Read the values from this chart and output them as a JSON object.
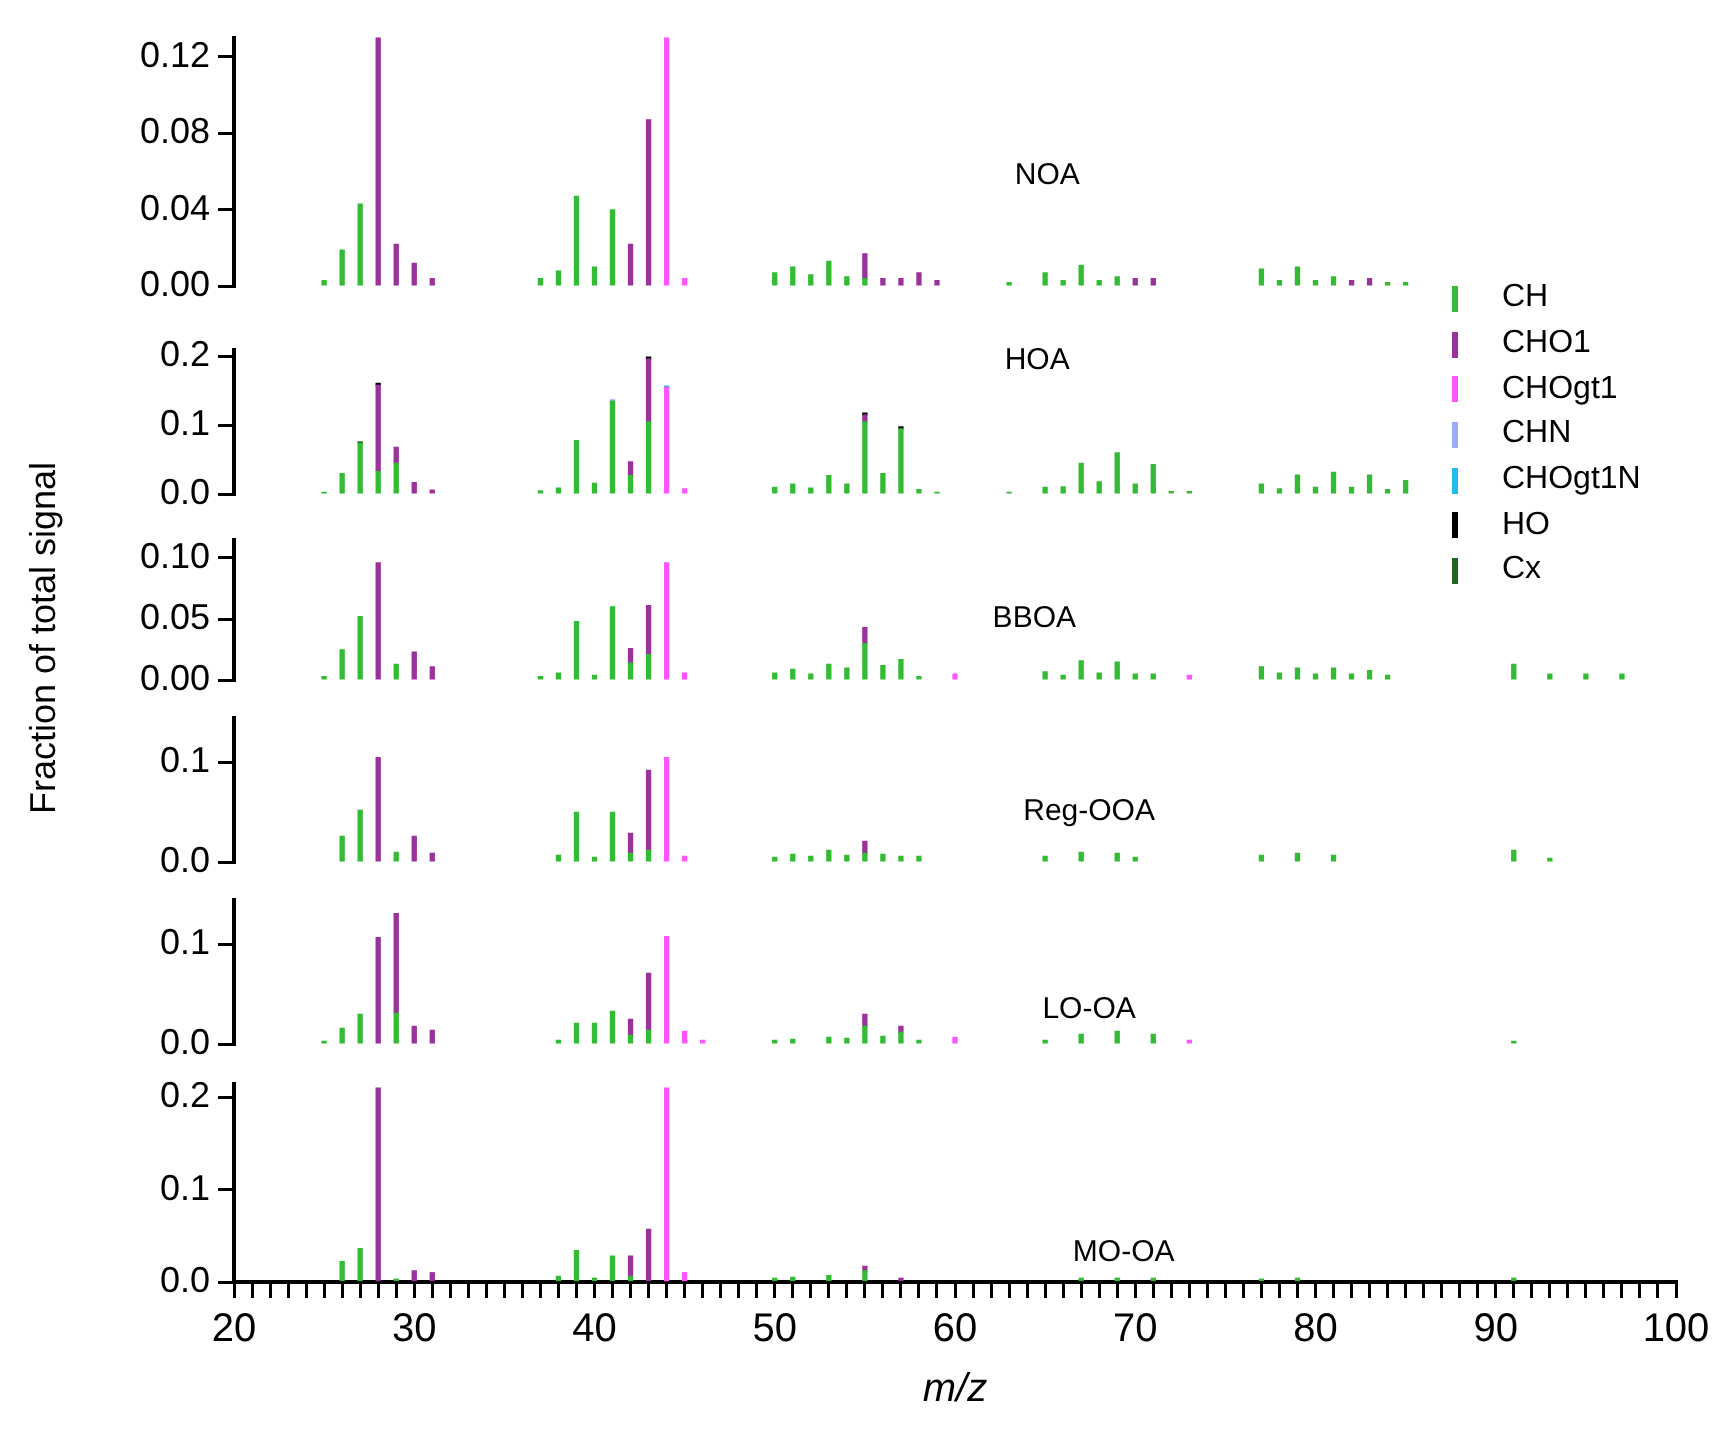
{
  "chart_data": [
    {
      "type": "bar",
      "title": "NOA",
      "stacked": true,
      "tick_labels": "y",
      "xlim": [
        20,
        100
      ],
      "ylim": [
        0,
        0.13
      ],
      "yticks": [
        {
          "value": 0,
          "label": "0.00"
        },
        {
          "value": 0.04,
          "label": "0.04"
        },
        {
          "value": 0.08,
          "label": "0.08"
        },
        {
          "value": 0.12,
          "label": "0.12"
        }
      ],
      "x": [
        25,
        26,
        27,
        28,
        29,
        30,
        31,
        37,
        38,
        39,
        40,
        41,
        42,
        43,
        44,
        45,
        50,
        51,
        52,
        53,
        54,
        55,
        56,
        57,
        58,
        59,
        63,
        65,
        66,
        67,
        68,
        69,
        70,
        71,
        77,
        78,
        79,
        80,
        81,
        82,
        83,
        84,
        85
      ],
      "series": [
        {
          "color": "#33bb33",
          "values": [
            0.003,
            0.019,
            0.043,
            null,
            null,
            null,
            null,
            0.004,
            0.008,
            0.047,
            0.01,
            0.04,
            null,
            null,
            null,
            null,
            0.007,
            0.01,
            0.006,
            0.013,
            0.005,
            0.004,
            null,
            null,
            null,
            null,
            0.002,
            0.007,
            0.003,
            0.011,
            0.003,
            0.005,
            null,
            null,
            0.009,
            0.003,
            0.01,
            0.003,
            0.005,
            null,
            null,
            0.002,
            0.002
          ]
        },
        {
          "color": "#993399",
          "values": [
            null,
            null,
            null,
            0.13,
            0.022,
            0.012,
            0.004,
            null,
            null,
            null,
            null,
            null,
            0.022,
            0.087,
            null,
            null,
            null,
            null,
            null,
            null,
            null,
            0.013,
            0.004,
            0.004,
            0.007,
            0.003,
            null,
            null,
            null,
            null,
            null,
            null,
            0.004,
            0.004,
            null,
            null,
            null,
            null,
            null,
            0.003,
            0.004,
            null,
            null
          ]
        },
        {
          "color": "#ff55ff",
          "values": [
            null,
            null,
            null,
            null,
            null,
            null,
            null,
            null,
            null,
            null,
            null,
            null,
            null,
            null,
            0.13,
            0.004,
            null,
            null,
            null,
            null,
            null,
            null,
            null,
            null,
            null,
            null,
            null,
            null,
            null,
            null,
            null,
            null,
            null,
            null,
            null,
            null,
            null,
            null,
            null,
            null,
            null,
            null,
            null
          ]
        }
      ]
    },
    {
      "type": "bar",
      "title": "HOA",
      "stacked": true,
      "tick_labels": "y",
      "legend": "right",
      "xlim": [
        20,
        100
      ],
      "ylim": [
        0,
        0.21
      ],
      "yticks": [
        {
          "value": 0,
          "label": "0.0"
        },
        {
          "value": 0.1,
          "label": "0.1"
        },
        {
          "value": 0.2,
          "label": "0.2"
        }
      ],
      "x": [
        25,
        26,
        27,
        28,
        29,
        30,
        31,
        37,
        38,
        39,
        40,
        41,
        42,
        43,
        44,
        45,
        50,
        51,
        52,
        53,
        54,
        55,
        56,
        57,
        58,
        59,
        63,
        65,
        66,
        67,
        68,
        69,
        70,
        71,
        72,
        73,
        77,
        78,
        79,
        80,
        81,
        82,
        83,
        84,
        85
      ],
      "series": [
        {
          "name": "CH",
          "color": "#33bb33",
          "values": [
            0.003,
            0.03,
            0.074,
            0.033,
            0.045,
            null,
            null,
            0.005,
            0.009,
            0.078,
            0.016,
            0.135,
            0.027,
            0.105,
            null,
            null,
            0.01,
            0.015,
            0.009,
            0.027,
            0.015,
            0.105,
            0.03,
            0.095,
            0.007,
            0.003,
            0.003,
            0.01,
            0.011,
            0.045,
            0.018,
            0.06,
            0.015,
            0.043,
            0.004,
            0.004,
            0.015,
            0.008,
            0.028,
            0.01,
            0.032,
            0.01,
            0.028,
            0.007,
            0.02
          ]
        },
        {
          "name": "CHO1",
          "color": "#993399",
          "values": [
            null,
            null,
            null,
            0.125,
            0.023,
            0.017,
            0.006,
            null,
            null,
            null,
            null,
            null,
            0.02,
            0.091,
            null,
            null,
            null,
            null,
            null,
            null,
            null,
            0.01,
            null,
            null,
            null,
            null,
            null,
            null,
            null,
            null,
            null,
            null,
            null,
            null,
            null,
            null,
            null,
            null,
            null,
            null,
            null,
            null,
            null,
            null,
            null
          ]
        },
        {
          "name": "CHOgt1",
          "color": "#ff55ff",
          "values": [
            null,
            null,
            null,
            null,
            null,
            null,
            null,
            null,
            null,
            null,
            null,
            null,
            null,
            null,
            0.155,
            0.008,
            null,
            null,
            null,
            null,
            null,
            null,
            null,
            null,
            null,
            null,
            null,
            null,
            null,
            null,
            null,
            null,
            null,
            null,
            null,
            null,
            null,
            null,
            null,
            null,
            null,
            null,
            null,
            null,
            null
          ]
        },
        {
          "name": "CHN",
          "color": "#99aaff",
          "values": [
            null,
            null,
            null,
            null,
            null,
            null,
            null,
            null,
            null,
            null,
            null,
            0.002,
            null,
            null,
            null,
            null,
            null,
            null,
            null,
            null,
            null,
            null,
            null,
            null,
            null,
            null,
            null,
            null,
            null,
            null,
            null,
            null,
            null,
            null,
            null,
            null,
            null,
            null,
            null,
            null,
            null,
            null,
            null,
            null,
            null
          ]
        },
        {
          "name": "CHOgt1N",
          "color": "#22bbee",
          "values": [
            null,
            null,
            null,
            null,
            null,
            null,
            null,
            null,
            null,
            null,
            null,
            null,
            null,
            null,
            0.002,
            null,
            null,
            null,
            null,
            null,
            null,
            null,
            null,
            null,
            null,
            null,
            null,
            null,
            null,
            null,
            null,
            null,
            null,
            null,
            null,
            null,
            null,
            null,
            null,
            null,
            null,
            null,
            null,
            null,
            null
          ]
        },
        {
          "name": "HO",
          "color": "#000000",
          "values": [
            null,
            null,
            null,
            0.003,
            null,
            null,
            null,
            null,
            null,
            null,
            null,
            null,
            null,
            0.003,
            null,
            null,
            null,
            null,
            null,
            null,
            null,
            0.003,
            null,
            0.003,
            null,
            null,
            null,
            null,
            null,
            null,
            null,
            null,
            null,
            null,
            null,
            null,
            null,
            null,
            null,
            null,
            null,
            null,
            null,
            null,
            null
          ]
        },
        {
          "name": "Cx",
          "color": "#226622",
          "values": [
            null,
            null,
            0.002,
            null,
            null,
            null,
            null,
            null,
            null,
            null,
            null,
            null,
            null,
            null,
            null,
            null,
            null,
            null,
            null,
            null,
            null,
            null,
            null,
            null,
            null,
            null,
            null,
            null,
            null,
            null,
            null,
            null,
            null,
            null,
            null,
            null,
            null,
            null,
            null,
            null,
            null,
            null,
            null,
            null,
            null
          ]
        }
      ]
    },
    {
      "type": "bar",
      "title": "BBOA",
      "ylabel": "Fraction of total signal",
      "stacked": true,
      "tick_labels": "y",
      "xlim": [
        20,
        100
      ],
      "ylim": [
        0,
        0.115
      ],
      "yticks": [
        {
          "value": 0,
          "label": "0.00"
        },
        {
          "value": 0.05,
          "label": "0.05"
        },
        {
          "value": 0.1,
          "label": "0.10"
        }
      ],
      "x": [
        25,
        26,
        27,
        28,
        29,
        30,
        31,
        37,
        38,
        39,
        40,
        41,
        42,
        43,
        44,
        45,
        50,
        51,
        52,
        53,
        54,
        55,
        56,
        57,
        58,
        60,
        65,
        66,
        67,
        68,
        69,
        70,
        71,
        73,
        77,
        78,
        79,
        80,
        81,
        82,
        83,
        84,
        91,
        93,
        95,
        97
      ],
      "series": [
        {
          "color": "#33bb33",
          "values": [
            0.003,
            0.025,
            0.052,
            null,
            0.013,
            null,
            null,
            0.003,
            0.006,
            0.048,
            0.004,
            0.06,
            0.014,
            0.021,
            null,
            null,
            0.006,
            0.009,
            0.005,
            0.013,
            0.01,
            0.03,
            0.012,
            0.017,
            0.003,
            null,
            0.007,
            0.004,
            0.016,
            0.006,
            0.015,
            0.005,
            0.005,
            null,
            0.011,
            0.006,
            0.01,
            0.005,
            0.01,
            0.005,
            0.008,
            0.004,
            0.013,
            0.005,
            0.005,
            0.005
          ]
        },
        {
          "color": "#993399",
          "values": [
            null,
            null,
            null,
            0.096,
            null,
            0.023,
            0.011,
            null,
            null,
            null,
            null,
            null,
            0.012,
            0.04,
            null,
            null,
            null,
            null,
            null,
            null,
            null,
            0.013,
            null,
            null,
            null,
            null,
            null,
            null,
            null,
            null,
            null,
            null,
            null,
            null,
            null,
            null,
            null,
            null,
            null,
            null,
            null,
            null,
            null,
            null,
            null,
            null
          ]
        },
        {
          "color": "#ff55ff",
          "values": [
            null,
            null,
            null,
            null,
            null,
            null,
            null,
            null,
            null,
            null,
            null,
            null,
            null,
            null,
            0.096,
            0.006,
            null,
            null,
            null,
            null,
            null,
            null,
            null,
            null,
            null,
            0.005,
            null,
            null,
            null,
            null,
            null,
            null,
            null,
            0.004,
            null,
            null,
            null,
            null,
            null,
            null,
            null,
            null,
            null,
            null,
            null,
            null
          ]
        }
      ]
    },
    {
      "type": "bar",
      "title": "Reg-OOA",
      "stacked": true,
      "tick_labels": "y",
      "xlim": [
        20,
        100
      ],
      "ylim": [
        0,
        0.145
      ],
      "yticks": [
        {
          "value": 0,
          "label": "0.0"
        },
        {
          "value": 0.1,
          "label": "0.1"
        }
      ],
      "x": [
        26,
        27,
        28,
        29,
        30,
        31,
        38,
        39,
        40,
        41,
        42,
        43,
        44,
        45,
        50,
        51,
        52,
        53,
        54,
        55,
        56,
        57,
        58,
        65,
        67,
        69,
        70,
        77,
        79,
        81,
        91,
        93
      ],
      "series": [
        {
          "color": "#33bb33",
          "values": [
            0.026,
            0.052,
            null,
            0.01,
            null,
            null,
            0.007,
            0.05,
            0.005,
            0.05,
            0.009,
            0.012,
            null,
            null,
            0.005,
            0.008,
            0.006,
            0.012,
            0.007,
            0.009,
            0.008,
            0.006,
            0.006,
            0.006,
            0.01,
            0.009,
            0.005,
            0.007,
            0.009,
            0.007,
            0.012,
            0.004
          ]
        },
        {
          "color": "#993399",
          "values": [
            null,
            null,
            0.105,
            null,
            0.026,
            0.009,
            null,
            null,
            null,
            null,
            0.02,
            0.08,
            null,
            null,
            null,
            null,
            null,
            null,
            null,
            0.012,
            null,
            null,
            null,
            null,
            null,
            null,
            null,
            null,
            null,
            null,
            null,
            null
          ]
        },
        {
          "color": "#ff55ff",
          "values": [
            null,
            null,
            null,
            null,
            null,
            null,
            null,
            null,
            null,
            null,
            null,
            null,
            0.105,
            0.006,
            null,
            null,
            null,
            null,
            null,
            null,
            null,
            null,
            null,
            null,
            null,
            null,
            null,
            null,
            null,
            null,
            null,
            null
          ]
        }
      ]
    },
    {
      "type": "bar",
      "title": "LO-OA",
      "stacked": true,
      "tick_labels": "y",
      "xlim": [
        20,
        100
      ],
      "ylim": [
        0,
        0.145
      ],
      "yticks": [
        {
          "value": 0,
          "label": "0.0"
        },
        {
          "value": 0.1,
          "label": "0.1"
        }
      ],
      "x": [
        25,
        26,
        27,
        28,
        29,
        30,
        31,
        38,
        39,
        40,
        41,
        42,
        43,
        44,
        45,
        46,
        50,
        51,
        53,
        54,
        55,
        56,
        57,
        58,
        60,
        65,
        67,
        69,
        71,
        73,
        91
      ],
      "series": [
        {
          "color": "#33bb33",
          "values": [
            0.003,
            0.016,
            0.03,
            null,
            0.031,
            null,
            null,
            0.004,
            0.021,
            0.021,
            0.033,
            0.009,
            0.014,
            null,
            null,
            null,
            0.004,
            0.005,
            0.007,
            0.006,
            0.018,
            0.008,
            0.012,
            0.004,
            null,
            0.004,
            0.01,
            0.013,
            0.01,
            null,
            0.003
          ]
        },
        {
          "color": "#993399",
          "values": [
            null,
            null,
            null,
            0.107,
            0.1,
            0.018,
            0.014,
            null,
            null,
            null,
            null,
            0.016,
            0.057,
            null,
            null,
            null,
            null,
            null,
            null,
            null,
            0.012,
            null,
            0.006,
            null,
            null,
            null,
            null,
            null,
            null,
            null,
            null
          ]
        },
        {
          "color": "#ff55ff",
          "values": [
            null,
            null,
            null,
            null,
            null,
            null,
            null,
            null,
            null,
            null,
            null,
            null,
            null,
            0.108,
            0.013,
            0.004,
            null,
            null,
            null,
            null,
            null,
            null,
            null,
            null,
            0.007,
            null,
            null,
            null,
            null,
            0.004,
            null
          ]
        }
      ]
    },
    {
      "type": "bar",
      "title": "MO-OA",
      "xlabel": "m/z",
      "stacked": true,
      "xlim": [
        20,
        100
      ],
      "ylim": [
        0,
        0.215
      ],
      "yticks": [
        {
          "value": 0,
          "label": "0.0"
        },
        {
          "value": 0.1,
          "label": "0.1"
        },
        {
          "value": 0.2,
          "label": "0.2"
        }
      ],
      "xticks": [
        20,
        {
          "value": 21,
          "label": null
        },
        {
          "value": 22,
          "label": null
        },
        {
          "value": 23,
          "label": null
        },
        {
          "value": 24,
          "label": null
        },
        {
          "value": 25,
          "label": null
        },
        {
          "value": 26,
          "label": null
        },
        {
          "value": 27,
          "label": null
        },
        {
          "value": 28,
          "label": null
        },
        {
          "value": 29,
          "label": null
        },
        30,
        {
          "value": 31,
          "label": null
        },
        {
          "value": 32,
          "label": null
        },
        {
          "value": 33,
          "label": null
        },
        {
          "value": 34,
          "label": null
        },
        {
          "value": 35,
          "label": null
        },
        {
          "value": 36,
          "label": null
        },
        {
          "value": 37,
          "label": null
        },
        {
          "value": 38,
          "label": null
        },
        {
          "value": 39,
          "label": null
        },
        40,
        {
          "value": 41,
          "label": null
        },
        {
          "value": 42,
          "label": null
        },
        {
          "value": 43,
          "label": null
        },
        {
          "value": 44,
          "label": null
        },
        {
          "value": 45,
          "label": null
        },
        {
          "value": 46,
          "label": null
        },
        {
          "value": 47,
          "label": null
        },
        {
          "value": 48,
          "label": null
        },
        {
          "value": 49,
          "label": null
        },
        50,
        {
          "value": 51,
          "label": null
        },
        {
          "value": 52,
          "label": null
        },
        {
          "value": 53,
          "label": null
        },
        {
          "value": 54,
          "label": null
        },
        {
          "value": 55,
          "label": null
        },
        {
          "value": 56,
          "label": null
        },
        {
          "value": 57,
          "label": null
        },
        {
          "value": 58,
          "label": null
        },
        {
          "value": 59,
          "label": null
        },
        60,
        {
          "value": 61,
          "label": null
        },
        {
          "value": 62,
          "label": null
        },
        {
          "value": 63,
          "label": null
        },
        {
          "value": 64,
          "label": null
        },
        {
          "value": 65,
          "label": null
        },
        {
          "value": 66,
          "label": null
        },
        {
          "value": 67,
          "label": null
        },
        {
          "value": 68,
          "label": null
        },
        {
          "value": 69,
          "label": null
        },
        70,
        {
          "value": 71,
          "label": null
        },
        {
          "value": 72,
          "label": null
        },
        {
          "value": 73,
          "label": null
        },
        {
          "value": 74,
          "label": null
        },
        {
          "value": 75,
          "label": null
        },
        {
          "value": 76,
          "label": null
        },
        {
          "value": 77,
          "label": null
        },
        {
          "value": 78,
          "label": null
        },
        {
          "value": 79,
          "label": null
        },
        80,
        {
          "value": 81,
          "label": null
        },
        {
          "value": 82,
          "label": null
        },
        {
          "value": 83,
          "label": null
        },
        {
          "value": 84,
          "label": null
        },
        {
          "value": 85,
          "label": null
        },
        {
          "value": 86,
          "label": null
        },
        {
          "value": 87,
          "label": null
        },
        {
          "value": 88,
          "label": null
        },
        {
          "value": 89,
          "label": null
        },
        90,
        {
          "value": 91,
          "label": null
        },
        {
          "value": 92,
          "label": null
        },
        {
          "value": 93,
          "label": null
        },
        {
          "value": 94,
          "label": null
        },
        {
          "value": 95,
          "label": null
        },
        {
          "value": 96,
          "label": null
        },
        {
          "value": 97,
          "label": null
        },
        {
          "value": 98,
          "label": null
        },
        {
          "value": 99,
          "label": null
        },
        100
      ],
      "x": [
        26,
        27,
        28,
        29,
        30,
        31,
        38,
        39,
        40,
        41,
        42,
        43,
        44,
        45,
        50,
        51,
        53,
        55,
        57,
        67,
        69,
        71,
        77,
        79,
        91
      ],
      "series": [
        {
          "color": "#33bb33",
          "values": [
            0.022,
            0.036,
            null,
            0.003,
            null,
            null,
            0.006,
            0.034,
            0.004,
            0.028,
            0.006,
            null,
            null,
            null,
            0.004,
            0.005,
            0.007,
            0.012,
            null,
            0.004,
            0.004,
            0.004,
            0.003,
            0.004,
            0.004
          ]
        },
        {
          "color": "#993399",
          "values": [
            null,
            null,
            0.21,
            null,
            0.012,
            0.01,
            null,
            null,
            null,
            null,
            0.022,
            0.057,
            null,
            null,
            null,
            null,
            null,
            0.005,
            0.004,
            null,
            null,
            null,
            null,
            null,
            null
          ]
        },
        {
          "color": "#ff55ff",
          "values": [
            null,
            null,
            null,
            null,
            null,
            null,
            null,
            null,
            null,
            null,
            null,
            null,
            0.21,
            0.01,
            null,
            null,
            null,
            null,
            null,
            null,
            null,
            null,
            null,
            null,
            null
          ]
        }
      ]
    }
  ]
}
